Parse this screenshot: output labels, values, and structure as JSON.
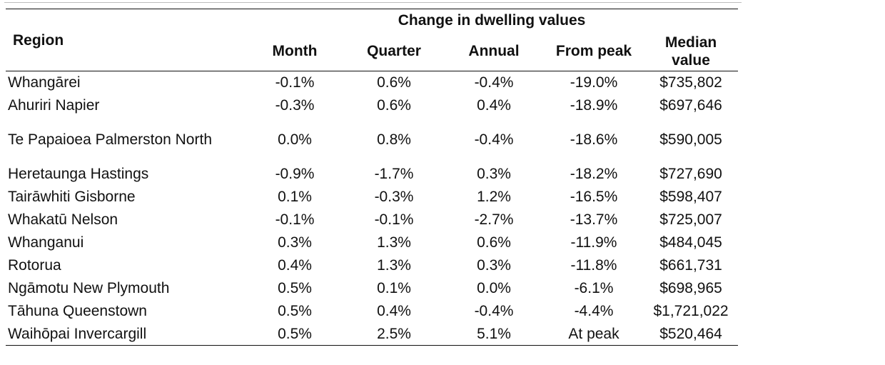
{
  "colors": {
    "background": "#ffffff",
    "text": "#111111",
    "rule": "#111111",
    "top_hairline": "#bdbdbd"
  },
  "table": {
    "group_header": "Change in dwelling values",
    "columns": {
      "region": "Region",
      "month": "Month",
      "quarter": "Quarter",
      "annual": "Annual",
      "from_peak": "From peak",
      "median_value": "Median value"
    },
    "rows": [
      {
        "region": "Whangārei",
        "month": "-0.1%",
        "quarter": "0.6%",
        "annual": "-0.4%",
        "from_peak": "-19.0%",
        "median_value": "$735,802"
      },
      {
        "region": "Ahuriri Napier",
        "month": "-0.3%",
        "quarter": "0.6%",
        "annual": "0.4%",
        "from_peak": "-18.9%",
        "median_value": "$697,646"
      },
      {
        "region": "Te Papaioea Palmerston North",
        "month": "0.0%",
        "quarter": "0.8%",
        "annual": "-0.4%",
        "from_peak": "-18.6%",
        "median_value": "$590,005"
      },
      {
        "region": "Heretaunga Hastings",
        "month": "-0.9%",
        "quarter": "-1.7%",
        "annual": "0.3%",
        "from_peak": "-18.2%",
        "median_value": "$727,690"
      },
      {
        "region": "Tairāwhiti Gisborne",
        "month": "0.1%",
        "quarter": "-0.3%",
        "annual": "1.2%",
        "from_peak": "-16.5%",
        "median_value": "$598,407"
      },
      {
        "region": "Whakatū Nelson",
        "month": "-0.1%",
        "quarter": "-0.1%",
        "annual": "-2.7%",
        "from_peak": "-13.7%",
        "median_value": "$725,007"
      },
      {
        "region": "Whanganui",
        "month": "0.3%",
        "quarter": "1.3%",
        "annual": "0.6%",
        "from_peak": "-11.9%",
        "median_value": "$484,045"
      },
      {
        "region": "Rotorua",
        "month": "0.4%",
        "quarter": "1.3%",
        "annual": "0.3%",
        "from_peak": "-11.8%",
        "median_value": "$661,731"
      },
      {
        "region": "Ngāmotu New Plymouth",
        "month": "0.5%",
        "quarter": "0.1%",
        "annual": "0.0%",
        "from_peak": "-6.1%",
        "median_value": "$698,965"
      },
      {
        "region": "Tāhuna Queenstown",
        "month": "0.5%",
        "quarter": "0.4%",
        "annual": "-0.4%",
        "from_peak": "-4.4%",
        "median_value": "$1,721,022"
      },
      {
        "region": "Waihōpai Invercargill",
        "month": "0.5%",
        "quarter": "2.5%",
        "annual": "5.1%",
        "from_peak": "At peak",
        "median_value": "$520,464"
      }
    ]
  }
}
